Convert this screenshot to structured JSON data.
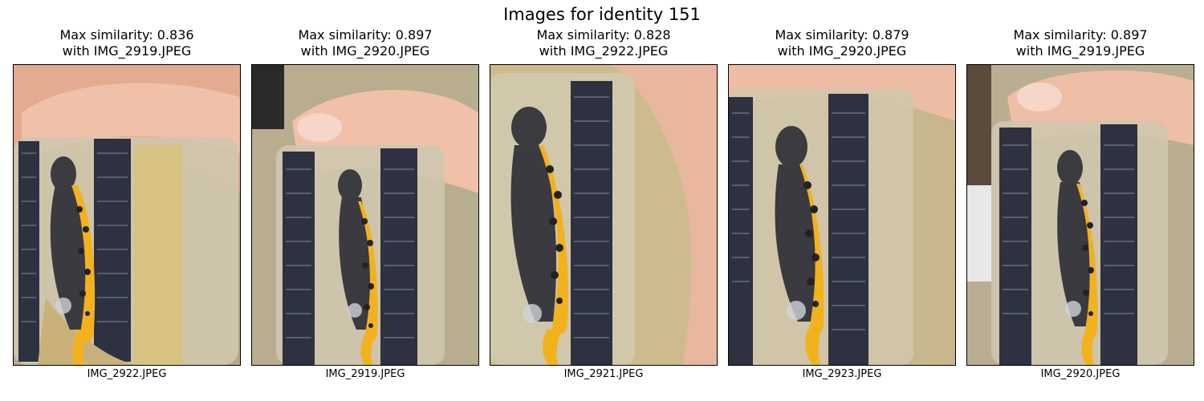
{
  "figure": {
    "title": "Images for identity 151"
  },
  "panels": [
    {
      "line1": "Max similarity: 0.836",
      "line2": "with IMG_2919.JPEG",
      "caption": "IMG_2922.JPEG"
    },
    {
      "line1": "Max similarity: 0.897",
      "line2": "with IMG_2920.JPEG",
      "caption": "IMG_2919.JPEG"
    },
    {
      "line1": "Max similarity: 0.828",
      "line2": "with IMG_2922.JPEG",
      "caption": "IMG_2921.JPEG"
    },
    {
      "line1": "Max similarity: 0.879",
      "line2": "with IMG_2920.JPEG",
      "caption": "IMG_2923.JPEG"
    },
    {
      "line1": "Max similarity: 0.897",
      "line2": "with IMG_2919.JPEG",
      "caption": "IMG_2920.JPEG"
    }
  ],
  "colors": {
    "newt_belly": "#f2b21e",
    "newt_dark": "#2a2a2e",
    "skin": "#e7b49a",
    "container_lid": "#2d3140",
    "substrate": "#c9b27a"
  }
}
